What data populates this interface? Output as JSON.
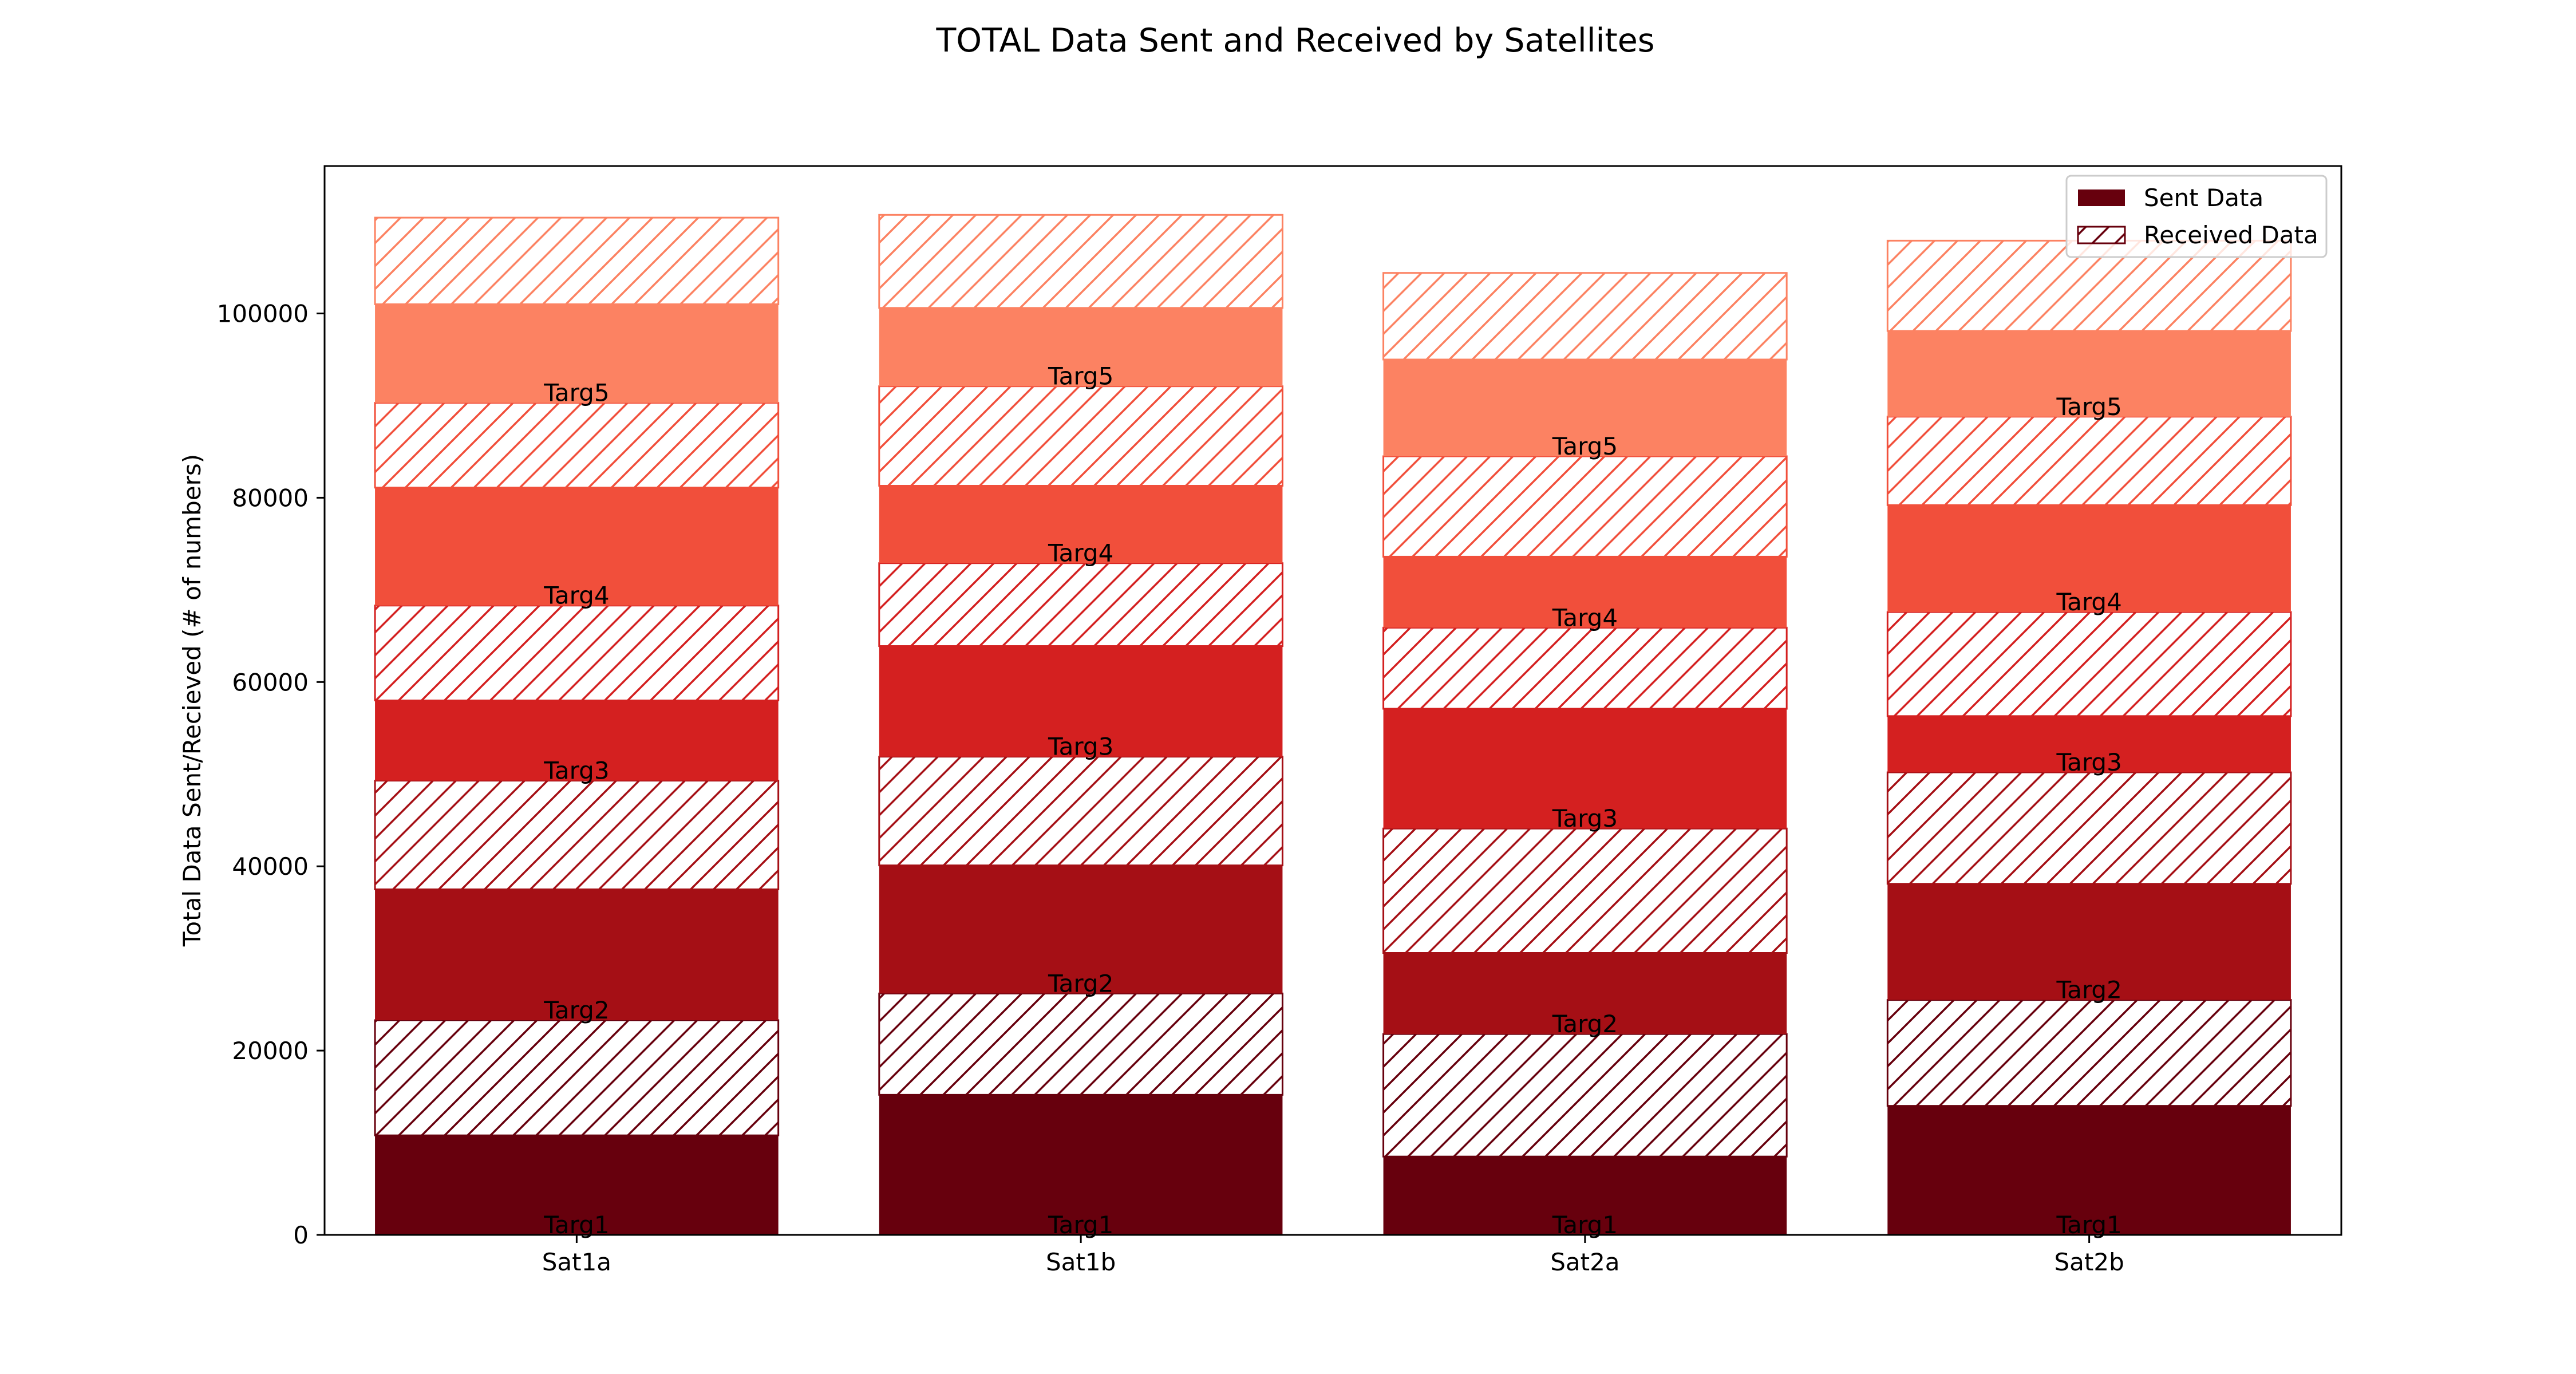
{
  "chart_data": {
    "type": "bar",
    "stacked": true,
    "title": "TOTAL Data Sent and Received by Satellites",
    "xlabel": "",
    "ylabel": "Total Data Sent/Recieved (# of numbers)",
    "ylim": [
      0,
      116000
    ],
    "yticks": [
      0,
      20000,
      40000,
      60000,
      80000,
      100000
    ],
    "ytick_labels": [
      "0",
      "20000",
      "40000",
      "60000",
      "80000",
      "100000"
    ],
    "categories": [
      "Sat1a",
      "Sat1b",
      "Sat2a",
      "Sat2b"
    ],
    "grid": false,
    "legend": {
      "placement": "top-right",
      "entries": [
        {
          "label": "Sent Data",
          "style": "solid",
          "color": "#67000d"
        },
        {
          "label": "Received Data",
          "style": "hatched",
          "color": "#67000d"
        }
      ]
    },
    "targets": [
      "Targ1",
      "Targ2",
      "Targ3",
      "Targ4",
      "Targ5"
    ],
    "target_colors": [
      "#67000d",
      "#a50f15",
      "#d42020",
      "#f14f3b",
      "#fc8262"
    ],
    "series": [
      {
        "target": "Targ1",
        "kind": "sent",
        "values": [
          10800,
          15200,
          8500,
          14000
        ]
      },
      {
        "target": "Targ1",
        "kind": "received",
        "values": [
          12500,
          11000,
          13300,
          11500
        ]
      },
      {
        "target": "Targ2",
        "kind": "sent",
        "values": [
          14200,
          13900,
          8800,
          12600
        ]
      },
      {
        "target": "Targ2",
        "kind": "received",
        "values": [
          11800,
          11800,
          13500,
          12100
        ]
      },
      {
        "target": "Targ3",
        "kind": "sent",
        "values": [
          8700,
          12000,
          13000,
          6100
        ]
      },
      {
        "target": "Targ3",
        "kind": "received",
        "values": [
          10300,
          9000,
          8800,
          11300
        ]
      },
      {
        "target": "Targ4",
        "kind": "sent",
        "values": [
          12800,
          8400,
          7700,
          11600
        ]
      },
      {
        "target": "Targ4",
        "kind": "received",
        "values": [
          9200,
          10800,
          10900,
          9600
        ]
      },
      {
        "target": "Targ5",
        "kind": "sent",
        "values": [
          10700,
          8500,
          10500,
          9300
        ]
      },
      {
        "target": "Targ5",
        "kind": "received",
        "values": [
          9400,
          10100,
          9400,
          9800
        ]
      }
    ]
  }
}
